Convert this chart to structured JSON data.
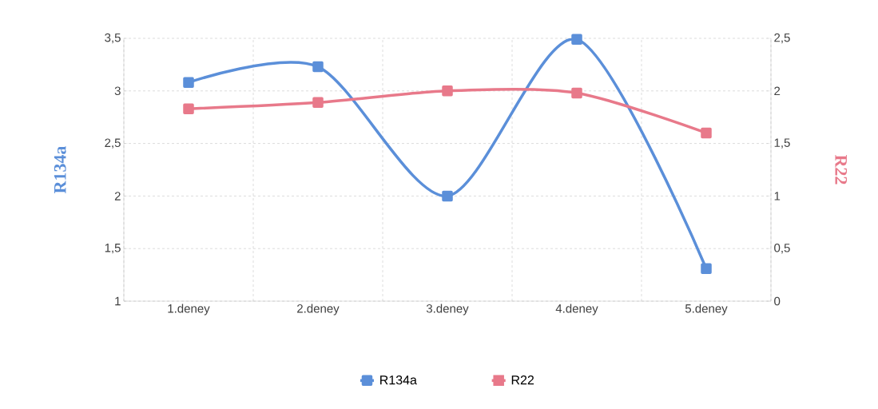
{
  "chart_data": {
    "type": "line",
    "ylabel": "R134a",
    "y2label": "R22",
    "categories": [
      "1.deney",
      "2.deney",
      "3.deney",
      "4.deney",
      "5.deney"
    ],
    "series": [
      {
        "name": "R134a",
        "color": "#5b8fd9",
        "values": [
          3.08,
          3.23,
          2.0,
          3.49,
          1.31
        ]
      },
      {
        "name": "R22",
        "color": "#e8798a",
        "axis": "y2",
        "values": [
          1.83,
          1.89,
          2.0,
          1.98,
          1.6
        ]
      }
    ],
    "ylim": [
      1,
      3.5
    ],
    "yticks": [
      1,
      {
        "value": 1.5,
        "label": "1,5"
      },
      2,
      {
        "value": 2.5,
        "label": "2,5"
      },
      3,
      {
        "value": 3.5,
        "label": "3,5"
      }
    ],
    "y2lim": [
      0,
      2.5
    ],
    "y2ticks": [
      0,
      {
        "value": 0.5,
        "label": "0,5"
      },
      1,
      {
        "value": 1.5,
        "label": "1,5"
      },
      2,
      {
        "value": 2.5,
        "label": "2,5"
      }
    ],
    "grid": true,
    "legend": "bottom",
    "marker": "square",
    "line_style": "solid"
  }
}
